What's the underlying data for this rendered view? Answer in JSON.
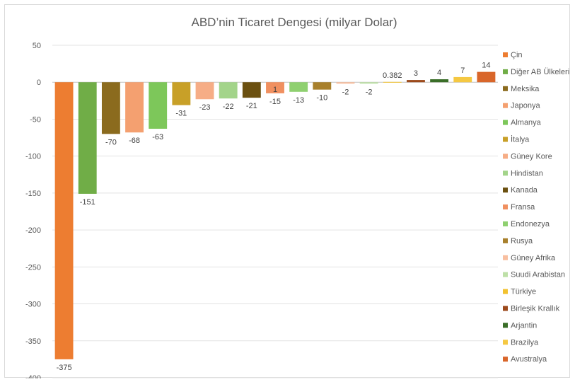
{
  "chart_data": {
    "type": "bar",
    "title": "ABD’nin Ticaret Dengesi (milyar Dolar)",
    "xlabel": "",
    "ylabel": "",
    "ylim": [
      -400,
      50
    ],
    "yticks": [
      50,
      0,
      -50,
      -100,
      -150,
      -200,
      -250,
      -300,
      -350,
      -400
    ],
    "grid": true,
    "legend_position": "right",
    "categories": [
      "Çin",
      "Diğer AB Ülkeleri",
      "Meksika",
      "Japonya",
      "Almanya",
      "İtalya",
      "Güney Kore",
      "Hindistan",
      "Kanada",
      "Fransa",
      "Endonezya",
      "Rusya",
      "Güney Afrika",
      "Suudi Arabistan",
      "Türkiye",
      "Birleşik Krallık",
      "Arjantin",
      "Brazilya",
      "Avustralya"
    ],
    "values": [
      -375,
      -151,
      -70,
      -68,
      -63,
      -31,
      -23,
      -22,
      -21,
      -15,
      -13,
      -10,
      -2,
      -2,
      0.382,
      3,
      4,
      7,
      14
    ],
    "data_labels": [
      "-375",
      "-151",
      "-70",
      "-68",
      "-63",
      "-31",
      "-23",
      "-22",
      "-21",
      "-15",
      "-13",
      "-10",
      "-2",
      "-2",
      "0.382",
      "3",
      "4",
      "7",
      "14"
    ],
    "colors": [
      "#ED7D31",
      "#70AD47",
      "#8B6B1E",
      "#F4A070",
      "#7DC75A",
      "#C8A028",
      "#F6AD86",
      "#A3D48A",
      "#6B5010",
      "#F09060",
      "#8FD070",
      "#A8802C",
      "#F8BFA0",
      "#BEE0A8",
      "#F2C230",
      "#9C4A1C",
      "#3A6E28",
      "#F5C842",
      "#D9662A"
    ],
    "annotations": [
      {
        "text": "1",
        "category": "Fransa"
      }
    ]
  }
}
